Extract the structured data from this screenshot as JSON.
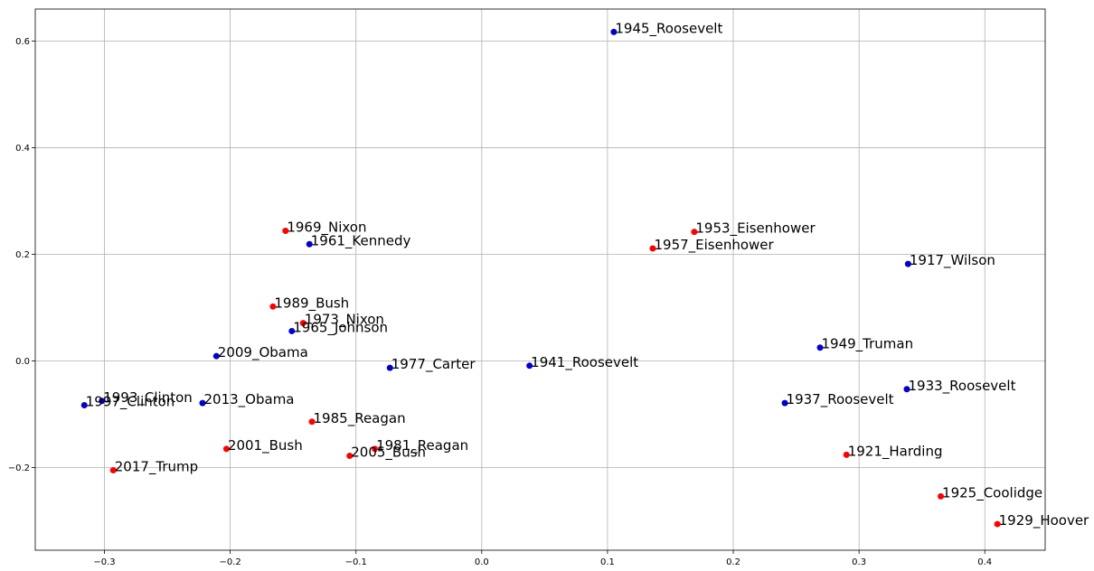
{
  "colors": {
    "republican": "#ff0000",
    "democrat": "#0000cc",
    "grid": "#b0b0b0",
    "axis": "#000000",
    "background": "#ffffff"
  },
  "chart_data": {
    "type": "scatter",
    "grid": true,
    "xlim": [
      -0.355,
      0.448
    ],
    "ylim": [
      -0.355,
      0.66
    ],
    "xticks": [
      {
        "value": -0.3,
        "label": "−0.3"
      },
      {
        "value": -0.2,
        "label": "−0.2"
      },
      {
        "value": -0.1,
        "label": "−0.1"
      },
      {
        "value": 0.0,
        "label": "0.0"
      },
      {
        "value": 0.1,
        "label": "0.1"
      },
      {
        "value": 0.2,
        "label": "0.2"
      },
      {
        "value": 0.3,
        "label": "0.3"
      },
      {
        "value": 0.4,
        "label": "0.4"
      }
    ],
    "yticks": [
      {
        "value": -0.2,
        "label": "−0.2"
      },
      {
        "value": 0.0,
        "label": "0.0"
      },
      {
        "value": 0.2,
        "label": "0.2"
      },
      {
        "value": 0.4,
        "label": "0.4"
      },
      {
        "value": 0.6,
        "label": "0.6"
      }
    ],
    "points": [
      {
        "label": "1945_Roosevelt",
        "x": 0.105,
        "y": 0.617,
        "color": "democrat"
      },
      {
        "label": "1953_Eisenhower",
        "x": 0.169,
        "y": 0.242,
        "color": "republican"
      },
      {
        "label": "1957_Eisenhower",
        "x": 0.136,
        "y": 0.211,
        "color": "republican"
      },
      {
        "label": "1969_Nixon",
        "x": -0.156,
        "y": 0.244,
        "color": "republican"
      },
      {
        "label": "1961_Kennedy",
        "x": -0.137,
        "y": 0.219,
        "color": "democrat"
      },
      {
        "label": "1917_Wilson",
        "x": 0.339,
        "y": 0.182,
        "color": "democrat"
      },
      {
        "label": "1989_Bush",
        "x": -0.166,
        "y": 0.102,
        "color": "republican"
      },
      {
        "label": "1973_Nixon",
        "x": -0.142,
        "y": 0.071,
        "color": "republican"
      },
      {
        "label": "1965_Johnson",
        "x": -0.151,
        "y": 0.056,
        "color": "democrat"
      },
      {
        "label": "2009_Obama",
        "x": -0.211,
        "y": 0.009,
        "color": "democrat"
      },
      {
        "label": "1949_Truman",
        "x": 0.269,
        "y": 0.025,
        "color": "democrat"
      },
      {
        "label": "1977_Carter",
        "x": -0.073,
        "y": -0.013,
        "color": "democrat"
      },
      {
        "label": "1941_Roosevelt",
        "x": 0.038,
        "y": -0.009,
        "color": "democrat"
      },
      {
        "label": "1933_Roosevelt",
        "x": 0.338,
        "y": -0.053,
        "color": "democrat"
      },
      {
        "label": "1993_Clinton",
        "x": -0.302,
        "y": -0.075,
        "color": "democrat"
      },
      {
        "label": "1997_Clinton",
        "x": -0.316,
        "y": -0.083,
        "color": "democrat"
      },
      {
        "label": "2013_Obama",
        "x": -0.222,
        "y": -0.079,
        "color": "democrat"
      },
      {
        "label": "1937_Roosevelt",
        "x": 0.241,
        "y": -0.079,
        "color": "democrat"
      },
      {
        "label": "1985_Reagan",
        "x": -0.135,
        "y": -0.114,
        "color": "republican"
      },
      {
        "label": "1981_Reagan",
        "x": -0.085,
        "y": -0.165,
        "color": "republican"
      },
      {
        "label": "2001_Bush",
        "x": -0.203,
        "y": -0.165,
        "color": "republican"
      },
      {
        "label": "2005_Bush",
        "x": -0.105,
        "y": -0.178,
        "color": "republican"
      },
      {
        "label": "1921_Harding",
        "x": 0.29,
        "y": -0.176,
        "color": "republican"
      },
      {
        "label": "2017_Trump",
        "x": -0.293,
        "y": -0.205,
        "color": "republican"
      },
      {
        "label": "1925_Coolidge",
        "x": 0.365,
        "y": -0.254,
        "color": "republican"
      },
      {
        "label": "1929_Hoover",
        "x": 0.41,
        "y": -0.306,
        "color": "republican"
      }
    ]
  }
}
